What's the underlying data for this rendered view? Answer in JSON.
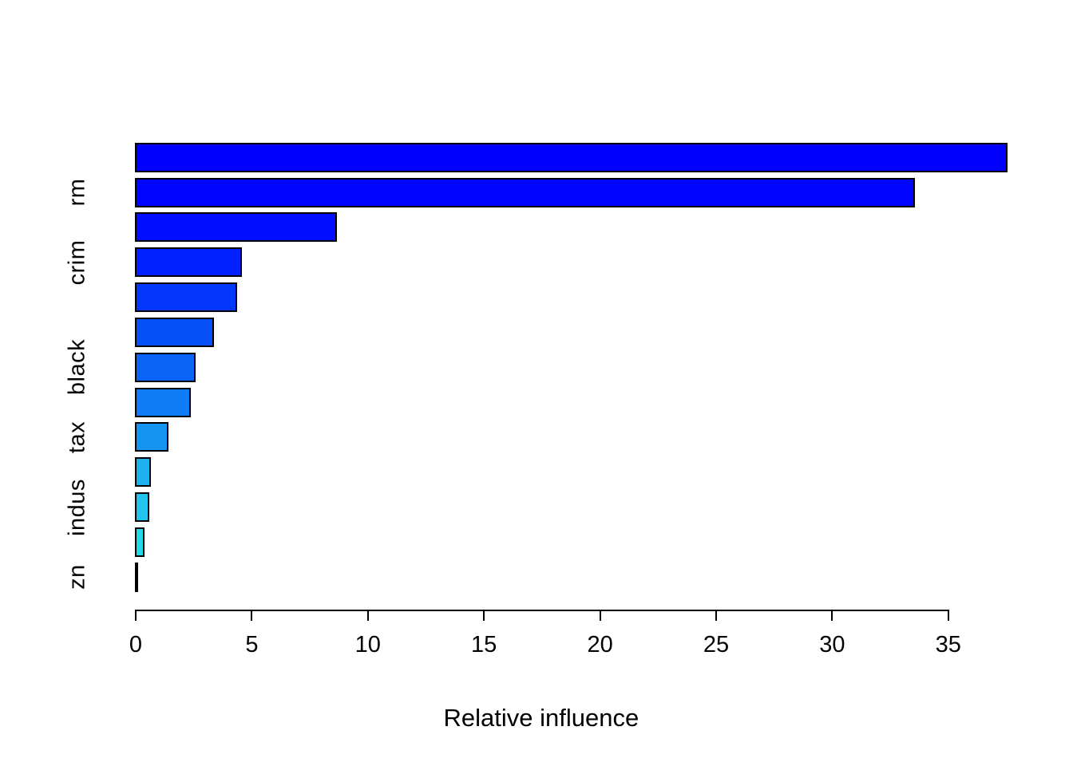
{
  "chart_data": {
    "type": "bar",
    "orientation": "horizontal",
    "title": "",
    "xlabel": "Relative influence",
    "ylabel": "",
    "xlim": [
      0,
      38.6
    ],
    "x_ticks": [
      0,
      5,
      10,
      15,
      20,
      25,
      30,
      35
    ],
    "grid": false,
    "legend": "none",
    "bars": [
      {
        "label": "",
        "value": 37.6,
        "color": "#0000FF"
      },
      {
        "label": "rm",
        "value": 33.6,
        "color": "#0005FF"
      },
      {
        "label": "",
        "value": 8.7,
        "color": "#010EFF"
      },
      {
        "label": "crim",
        "value": 4.6,
        "color": "#0322FF"
      },
      {
        "label": "",
        "value": 4.4,
        "color": "#0437FC"
      },
      {
        "label": "",
        "value": 3.4,
        "color": "#0850F8"
      },
      {
        "label": "black",
        "value": 2.6,
        "color": "#0A64F8"
      },
      {
        "label": "",
        "value": 2.4,
        "color": "#0F7CF6"
      },
      {
        "label": "tax",
        "value": 1.45,
        "color": "#1595F2"
      },
      {
        "label": "",
        "value": 0.7,
        "color": "#1FB0F0"
      },
      {
        "label": "indus",
        "value": 0.62,
        "color": "#22C4EE"
      },
      {
        "label": "",
        "value": 0.42,
        "color": "#24D8EC"
      },
      {
        "label": "zn",
        "value": 0.15,
        "color": "#2BE4DE"
      }
    ]
  },
  "colors": {
    "background": "#FFFFFF",
    "bar_border": "#000000",
    "axis": "#000000",
    "text": "#000000"
  }
}
